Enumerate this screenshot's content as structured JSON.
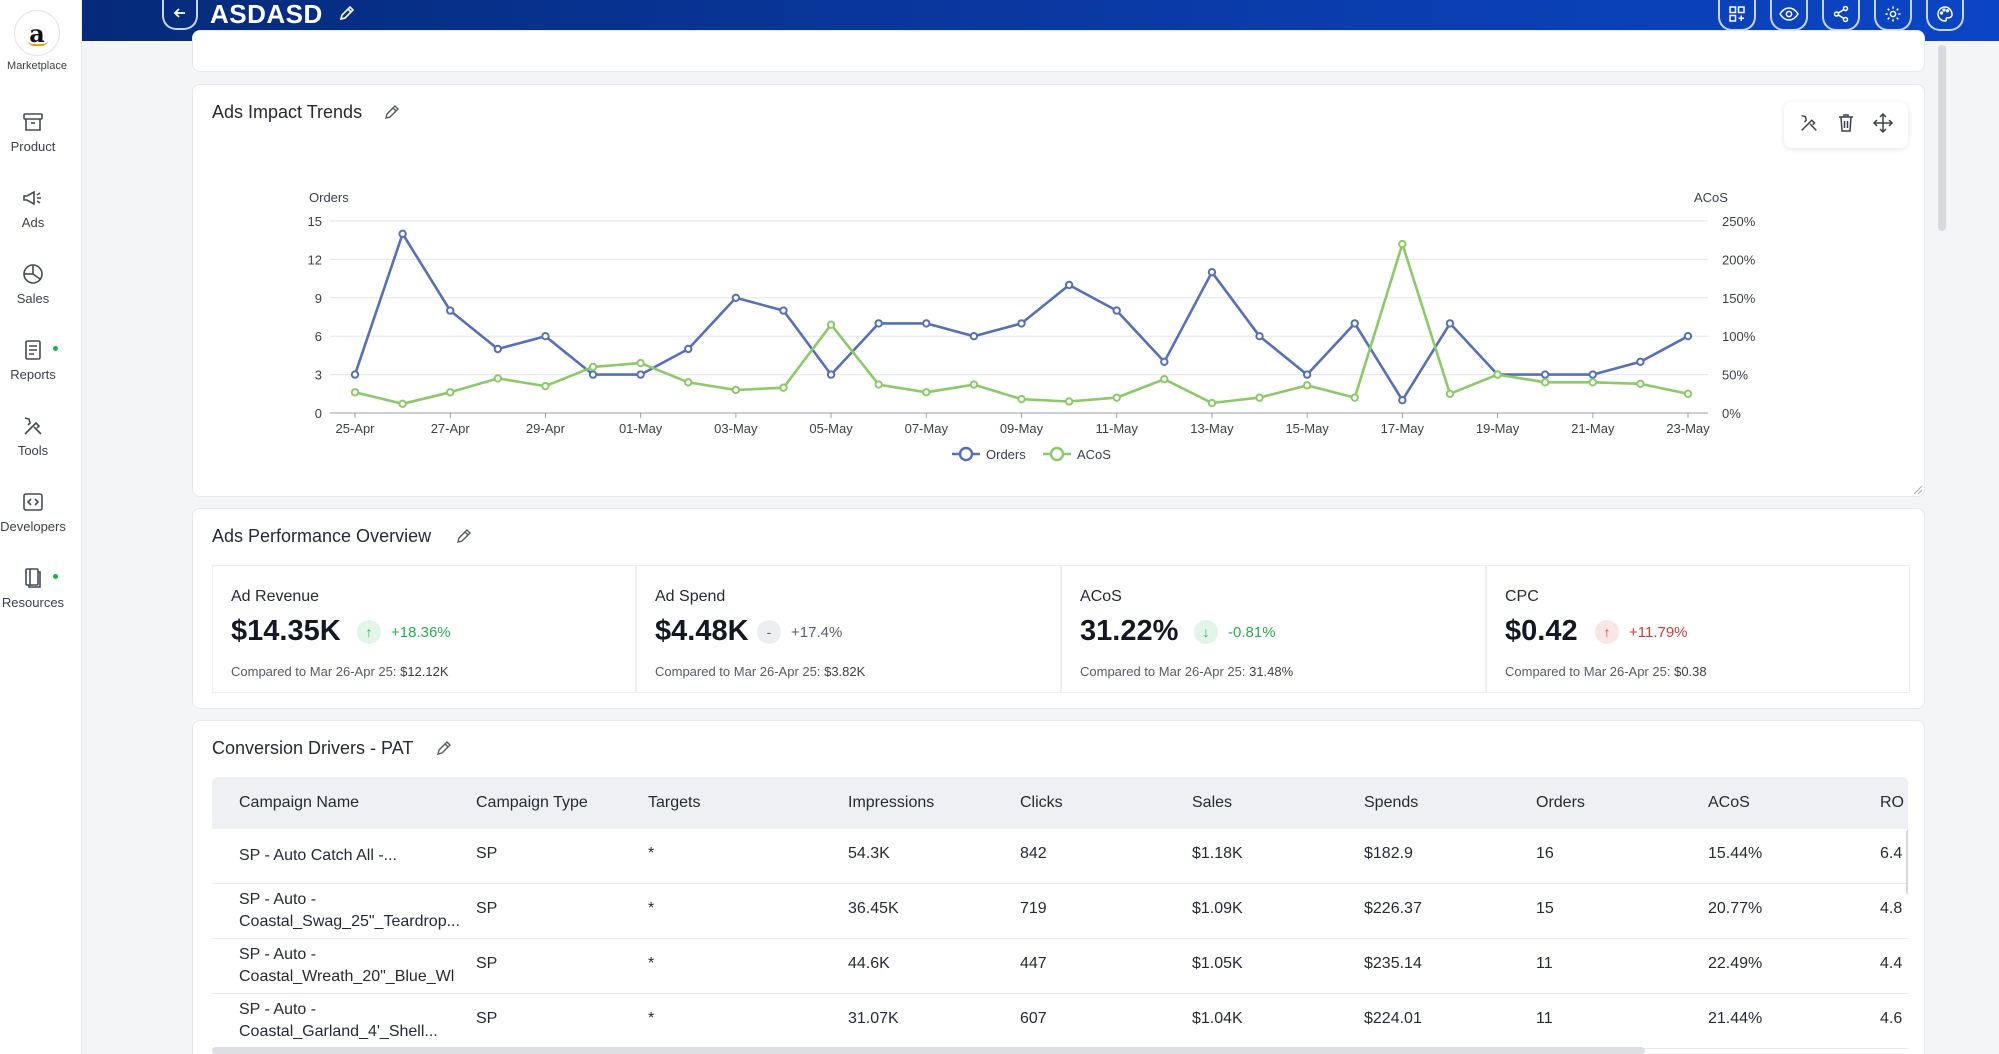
{
  "app": {
    "title": "ASDASD"
  },
  "sidebar": {
    "brand": {
      "logo_text": "a",
      "label": "Marketplace"
    },
    "items": [
      {
        "label": "Product",
        "icon": "box-icon",
        "dot": false
      },
      {
        "label": "Ads",
        "icon": "megaphone-icon",
        "dot": false
      },
      {
        "label": "Sales",
        "icon": "pie-chart-icon",
        "dot": false
      },
      {
        "label": "Reports",
        "icon": "report-icon",
        "dot": true
      },
      {
        "label": "Tools",
        "icon": "tools-icon",
        "dot": false
      },
      {
        "label": "Developers",
        "icon": "code-icon",
        "dot": false
      },
      {
        "label": "Resources",
        "icon": "book-icon",
        "dot": true
      }
    ],
    "dot_color": "#1ab24a"
  },
  "header": {
    "buttons": [
      "add-widget-icon",
      "eye-icon",
      "share-icon",
      "settings-icon",
      "palette-icon"
    ]
  },
  "trends": {
    "title": "Ads Impact Trends",
    "tools": [
      "tools-icon",
      "trash-icon",
      "move-icon"
    ]
  },
  "chart_data": {
    "type": "line",
    "title": "Ads Impact Trends",
    "x": [
      "25-Apr",
      "26-Apr",
      "27-Apr",
      "28-Apr",
      "29-Apr",
      "30-Apr",
      "01-May",
      "02-May",
      "03-May",
      "04-May",
      "05-May",
      "06-May",
      "07-May",
      "08-May",
      "09-May",
      "10-May",
      "11-May",
      "12-May",
      "13-May",
      "14-May",
      "15-May",
      "16-May",
      "17-May",
      "18-May",
      "19-May",
      "20-May",
      "21-May",
      "22-May",
      "23-May"
    ],
    "xticks": [
      "25-Apr",
      "27-Apr",
      "29-Apr",
      "01-May",
      "03-May",
      "05-May",
      "07-May",
      "09-May",
      "11-May",
      "13-May",
      "15-May",
      "17-May",
      "19-May",
      "21-May",
      "23-May"
    ],
    "series": [
      {
        "name": "Orders",
        "axis": "left",
        "color": "#5670b5",
        "values": [
          3,
          14,
          8,
          5,
          6,
          3,
          3,
          5,
          9,
          8,
          3,
          7,
          7,
          6,
          7,
          10,
          8,
          4,
          11,
          6,
          3,
          7,
          1,
          7,
          3,
          3,
          3,
          4,
          6
        ]
      },
      {
        "name": "ACoS",
        "axis": "right",
        "color": "#8cc96a",
        "values": [
          27,
          12,
          27,
          45,
          35,
          60,
          65,
          40,
          30,
          33,
          115,
          37,
          27,
          37,
          18,
          15,
          20,
          44,
          13,
          20,
          36,
          20,
          220,
          25,
          50,
          40,
          40,
          38,
          25
        ]
      }
    ],
    "ylabel_left": "Orders",
    "ylabel_right": "ACoS",
    "ylim_left": [
      0,
      15
    ],
    "yticks_left": [
      "0",
      "3",
      "6",
      "9",
      "12",
      "15"
    ],
    "ylim_right": [
      0,
      250
    ],
    "yticks_right": [
      "0%",
      "50%",
      "100%",
      "150%",
      "200%",
      "250%"
    ],
    "legend": "bottom-center",
    "grid": true
  },
  "overview": {
    "title": "Ads Performance Overview",
    "kpis": [
      {
        "label": "Ad Revenue",
        "value": "$14.35K",
        "trend": "up",
        "delta": "+18.36%",
        "delta_color": "#2dab52",
        "badge_bg": "#e3f5e7",
        "badge_fg": "#2dab52",
        "badge": "↑",
        "compare_prefix": "Compared to Mar 26-Apr 25:",
        "compare_value": "$12.12K"
      },
      {
        "label": "Ad Spend",
        "value": "$4.48K",
        "trend": "flat",
        "delta": "+17.4%",
        "delta_color": "#5b606d",
        "badge_bg": "#eceef2",
        "badge_fg": "#5b606d",
        "badge": "-",
        "compare_prefix": "Compared to Mar 26-Apr 25:",
        "compare_value": "$3.82K"
      },
      {
        "label": "ACoS",
        "value": "31.22%",
        "trend": "down",
        "delta": "-0.81%",
        "delta_color": "#2dab52",
        "badge_bg": "#e3f5e7",
        "badge_fg": "#2dab52",
        "badge": "↓",
        "compare_prefix": "Compared to Mar 26-Apr 25:",
        "compare_value": "31.48%"
      },
      {
        "label": "CPC",
        "value": "$0.42",
        "trend": "up",
        "delta": "+11.79%",
        "delta_color": "#d83a3a",
        "badge_bg": "#fbe6e6",
        "badge_fg": "#d83a3a",
        "badge": "↑",
        "compare_prefix": "Compared to Mar 26-Apr 25:",
        "compare_value": "$0.38"
      }
    ]
  },
  "drivers": {
    "title": "Conversion Drivers - PAT",
    "columns": [
      "Campaign Name",
      "Campaign Type",
      "Targets",
      "Impressions",
      "Clicks",
      "Sales",
      "Spends",
      "Orders",
      "ACoS",
      "RO"
    ],
    "rows": [
      {
        "name": [
          "SP - Auto Catch All -..."
        ],
        "type": "SP",
        "targets": "*",
        "impressions": "54.3K",
        "clicks": "842",
        "sales": "$1.18K",
        "spends": "$182.9",
        "orders": "16",
        "acos": "15.44%",
        "ro": "6.4"
      },
      {
        "name": [
          "SP - Auto -",
          "Coastal_Swag_25\"_Teardrop..."
        ],
        "type": "SP",
        "targets": "*",
        "impressions": "36.45K",
        "clicks": "719",
        "sales": "$1.09K",
        "spends": "$226.37",
        "orders": "15",
        "acos": "20.77%",
        "ro": "4.8"
      },
      {
        "name": [
          "SP - Auto -",
          "Coastal_Wreath_20\"_Blue_Wl"
        ],
        "type": "SP",
        "targets": "*",
        "impressions": "44.6K",
        "clicks": "447",
        "sales": "$1.05K",
        "spends": "$235.14",
        "orders": "11",
        "acos": "22.49%",
        "ro": "4.4"
      },
      {
        "name": [
          "SP - Auto -",
          "Coastal_Garland_4'_Shell..."
        ],
        "type": "SP",
        "targets": "*",
        "impressions": "31.07K",
        "clicks": "607",
        "sales": "$1.04K",
        "spends": "$224.01",
        "orders": "11",
        "acos": "21.44%",
        "ro": "4.6"
      }
    ]
  }
}
